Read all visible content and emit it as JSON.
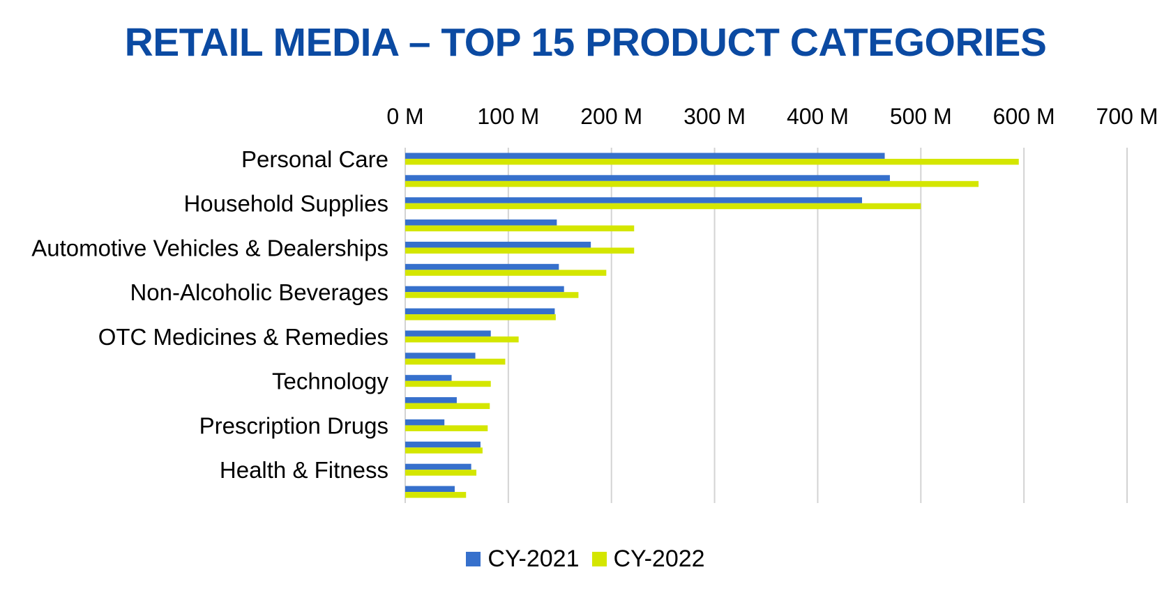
{
  "chart_data": {
    "type": "bar",
    "orientation": "horizontal",
    "title": "RETAIL MEDIA – TOP 15 PRODUCT CATEGORIES",
    "xlabel": "",
    "ylabel": "",
    "xlim": [
      0,
      700
    ],
    "x_ticks": [
      "0 M",
      "100 M",
      "200 M",
      "300 M",
      "400 M",
      "500 M",
      "600 M",
      "700 M"
    ],
    "x_tick_values": [
      0,
      100,
      200,
      300,
      400,
      500,
      600,
      700
    ],
    "x_axis_position": "top",
    "grid": true,
    "legend_position": "bottom",
    "categories": [
      "Personal Care",
      "",
      "Household Supplies",
      "",
      "Automotive Vehicles & Dealerships",
      "",
      "Non-Alcoholic Beverages",
      "",
      "OTC Medicines & Remedies",
      "",
      "Technology",
      "",
      "Prescription Drugs",
      "",
      "Health & Fitness",
      ""
    ],
    "series": [
      {
        "name": "CY-2021",
        "color": "#3670cc",
        "values": [
          465,
          470,
          443,
          147,
          180,
          149,
          154,
          145,
          83,
          68,
          45,
          50,
          38,
          73,
          64,
          48
        ]
      },
      {
        "name": "CY-2022",
        "color": "#d4e600",
        "values": [
          595,
          556,
          500,
          222,
          222,
          195,
          168,
          146,
          110,
          97,
          83,
          82,
          80,
          75,
          69,
          59
        ]
      }
    ]
  },
  "colors": {
    "title": "#0b4aa2",
    "grid": "#d3d3d3",
    "text": "#000000"
  }
}
